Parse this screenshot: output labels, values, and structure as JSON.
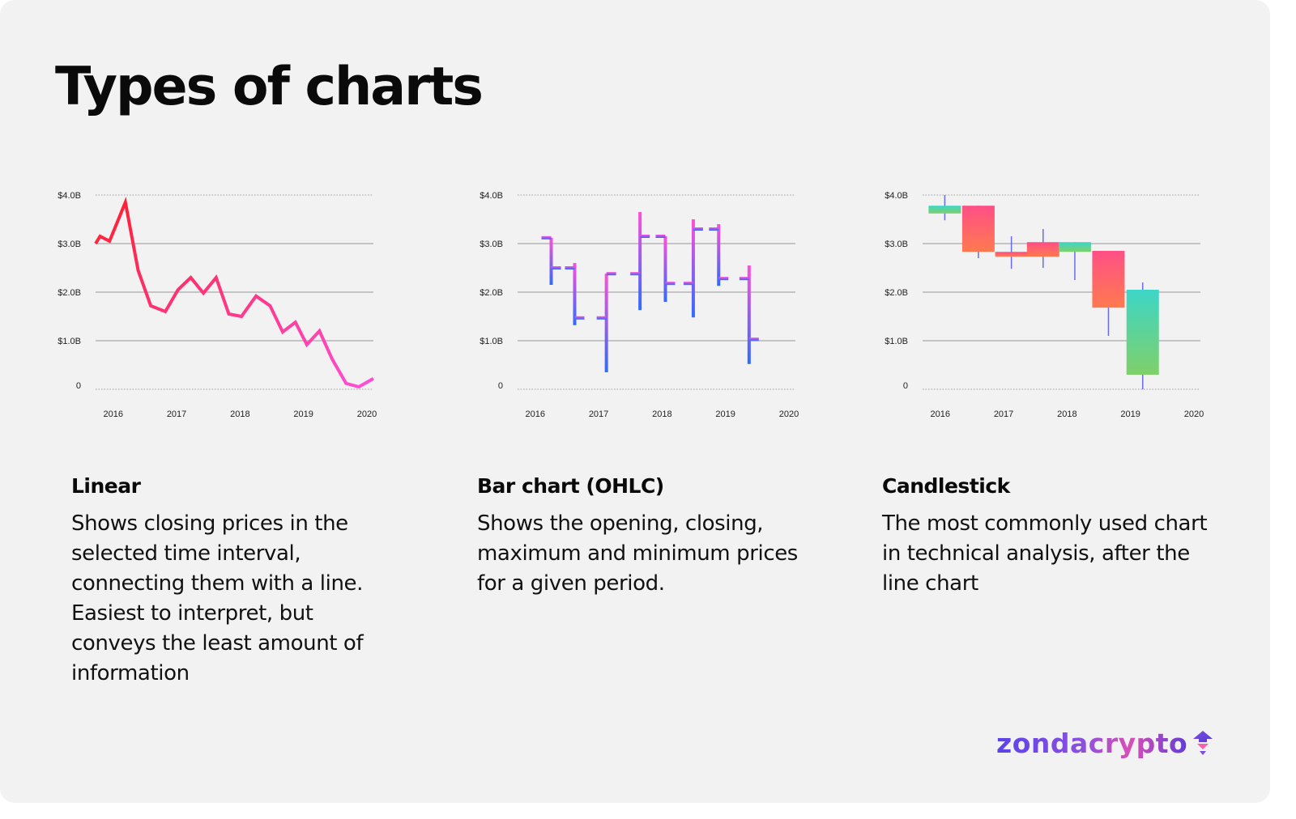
{
  "title": "Types of charts",
  "panels": [
    {
      "title": "Linear",
      "description": "Shows closing prices in the selected time interval, connecting them with a line. Easiest to interpret, but conveys the least amount of information"
    },
    {
      "title": "Bar chart (OHLC)",
      "description": "Shows the opening, closing, maximum and minimum prices for a given period."
    },
    {
      "title": "Candlestick",
      "description": "The most commonly used chart in technical analysis, after the line chart"
    }
  ],
  "brand": {
    "name": "zondacrypto",
    "icon": "rocket-icon",
    "colors": [
      "#5a43e8",
      "#d94fb5"
    ]
  },
  "colors": {
    "line_start": "#ff1f2e",
    "line_end": "#ff4fd8",
    "ohlc_top": "#ff4fd8",
    "ohlc_bottom": "#2f6bff",
    "candle_up_top": "#3dd6c7",
    "candle_up_bottom": "#7fd06a",
    "candle_down_top": "#ff4f86",
    "candle_down_bottom": "#ff7a4f",
    "wick": "#6a6af0",
    "grid": "#b5b5b5"
  },
  "chart_data": [
    {
      "type": "line",
      "x_ticks": [
        "2016",
        "2017",
        "2018",
        "2019",
        "2020"
      ],
      "y_ticks": [
        "0",
        "$1.0B",
        "$2.0B",
        "$3.0B",
        "$4.0B"
      ],
      "ylim": [
        0,
        4
      ],
      "xlim": [
        2015.85,
        2020.23
      ],
      "grid": "horizontal",
      "x": [
        2015.85,
        2015.92,
        2016.07,
        2016.32,
        2016.52,
        2016.72,
        2016.95,
        2017.15,
        2017.35,
        2017.55,
        2017.75,
        2017.95,
        2018.15,
        2018.38,
        2018.6,
        2018.8,
        2019.0,
        2019.18,
        2019.38,
        2019.58,
        2019.8,
        2020.0,
        2020.23
      ],
      "values": [
        3.0,
        3.15,
        3.05,
        3.85,
        2.45,
        1.72,
        1.6,
        2.05,
        2.3,
        1.98,
        2.3,
        1.55,
        1.5,
        1.92,
        1.72,
        1.18,
        1.38,
        0.92,
        1.2,
        0.62,
        0.12,
        0.05,
        0.22
      ]
    },
    {
      "type": "ohlc",
      "x_ticks": [
        "2016",
        "2017",
        "2018",
        "2019",
        "2020"
      ],
      "y_ticks": [
        "0",
        "$1.0B",
        "$2.0B",
        "$3.0B",
        "$4.0B"
      ],
      "ylim": [
        0,
        4
      ],
      "xlim": [
        2015.85,
        2020.23
      ],
      "grid": "horizontal",
      "bars": [
        {
          "x": 2016.38,
          "open": 3.12,
          "high": 3.12,
          "low": 2.15,
          "close": 2.5
        },
        {
          "x": 2016.75,
          "open": 2.5,
          "high": 2.6,
          "low": 1.32,
          "close": 1.47
        },
        {
          "x": 2017.25,
          "open": 1.47,
          "high": 2.38,
          "low": 0.35,
          "close": 2.38
        },
        {
          "x": 2017.78,
          "open": 2.38,
          "high": 3.65,
          "low": 1.63,
          "close": 3.15
        },
        {
          "x": 2018.18,
          "open": 3.15,
          "high": 3.15,
          "low": 1.8,
          "close": 2.18
        },
        {
          "x": 2018.62,
          "open": 2.18,
          "high": 3.5,
          "low": 1.48,
          "close": 3.3
        },
        {
          "x": 2019.02,
          "open": 3.3,
          "high": 3.4,
          "low": 2.13,
          "close": 2.28
        },
        {
          "x": 2019.5,
          "open": 2.28,
          "high": 2.55,
          "low": 0.52,
          "close": 1.03
        }
      ]
    },
    {
      "type": "candlestick",
      "x_ticks": [
        "2016",
        "2017",
        "2018",
        "2019",
        "2020"
      ],
      "y_ticks": [
        "0",
        "$1.0B",
        "$2.0B",
        "$3.0B",
        "$4.0B"
      ],
      "ylim": [
        0,
        4
      ],
      "xlim": [
        2015.85,
        2020.23
      ],
      "grid": "horizontal",
      "candles": [
        {
          "x": 2016.2,
          "open": 3.62,
          "close": 3.78,
          "high": 4.0,
          "low": 3.48
        },
        {
          "x": 2016.73,
          "open": 3.78,
          "close": 2.83,
          "high": 3.78,
          "low": 2.7
        },
        {
          "x": 2017.25,
          "open": 2.83,
          "close": 2.73,
          "high": 3.15,
          "low": 2.48
        },
        {
          "x": 2017.75,
          "open": 3.03,
          "close": 2.73,
          "high": 3.3,
          "low": 2.5
        },
        {
          "x": 2018.25,
          "open": 2.83,
          "close": 3.03,
          "high": 3.03,
          "low": 2.25
        },
        {
          "x": 2018.78,
          "open": 2.85,
          "close": 1.68,
          "high": 2.85,
          "low": 1.1
        },
        {
          "x": 2019.32,
          "open": 0.3,
          "close": 2.05,
          "high": 2.2,
          "low": 0.0
        }
      ]
    }
  ]
}
